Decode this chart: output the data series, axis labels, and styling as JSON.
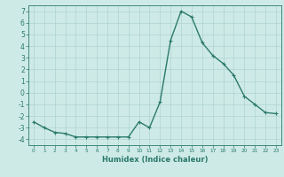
{
  "x": [
    0,
    1,
    2,
    3,
    4,
    5,
    6,
    7,
    8,
    9,
    10,
    11,
    12,
    13,
    14,
    15,
    16,
    17,
    18,
    19,
    20,
    21,
    22,
    23
  ],
  "y": [
    -2.5,
    -3.0,
    -3.4,
    -3.5,
    -3.8,
    -3.8,
    -3.8,
    -3.8,
    -3.8,
    -3.8,
    -2.5,
    -3.0,
    -0.8,
    4.5,
    7.0,
    6.5,
    4.3,
    3.2,
    2.5,
    1.5,
    -0.3,
    -1.0,
    -1.7,
    -1.8
  ],
  "line_color": "#2a7a6a",
  "marker": "+",
  "marker_size": 3,
  "xlabel": "Humidex (Indice chaleur)",
  "ylim": [
    -4.5,
    7.5
  ],
  "xlim": [
    -0.5,
    23.5
  ],
  "yticks": [
    -4,
    -3,
    -2,
    -1,
    0,
    1,
    2,
    3,
    4,
    5,
    6,
    7
  ],
  "xticks": [
    0,
    1,
    2,
    3,
    4,
    5,
    6,
    7,
    8,
    9,
    10,
    11,
    12,
    13,
    14,
    15,
    16,
    17,
    18,
    19,
    20,
    21,
    22,
    23
  ],
  "xtick_labels": [
    "0",
    "1",
    "2",
    "3",
    "4",
    "5",
    "6",
    "7",
    "8",
    "9",
    "10",
    "11",
    "12",
    "13",
    "14",
    "15",
    "16",
    "17",
    "18",
    "19",
    "20",
    "21",
    "22",
    "23"
  ],
  "background_color": "#ceeae7",
  "grid_color": "#aed4d0",
  "line_width": 1.0
}
